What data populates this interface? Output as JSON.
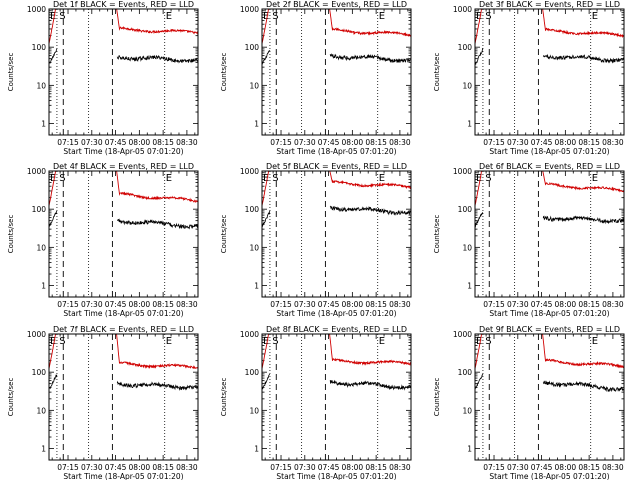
{
  "chart_data": [
    {
      "type": "line",
      "title": "Det 1f BLACK = Events, RED = LLD",
      "xlabel": "Start Time (18-Apr-05 07:01:20)",
      "ylabel": "Counts/sec",
      "red_level": [
        300,
        240
      ],
      "black_level": [
        55,
        45
      ]
    },
    {
      "type": "line",
      "title": "Det 2f BLACK = Events, RED = LLD",
      "xlabel": "Start Time (18-Apr-05 07:01:20)",
      "ylabel": "Counts/sec",
      "red_level": [
        280,
        210
      ],
      "black_level": [
        60,
        45
      ]
    },
    {
      "type": "line",
      "title": "Det 3f BLACK = Events, RED = LLD",
      "xlabel": "Start Time (18-Apr-05 07:01:20)",
      "ylabel": "Counts/sec",
      "red_level": [
        280,
        200
      ],
      "black_level": [
        60,
        45
      ]
    },
    {
      "type": "line",
      "title": "Det 4f BLACK = Events, RED = LLD",
      "xlabel": "Start Time (18-Apr-05 07:01:20)",
      "ylabel": "Counts/sec",
      "red_level": [
        250,
        160
      ],
      "black_level": [
        50,
        35
      ]
    },
    {
      "type": "line",
      "title": "Det 5f BLACK = Events, RED = LLD",
      "xlabel": "Start Time (18-Apr-05 07:01:20)",
      "ylabel": "Counts/sec",
      "red_level": [
        500,
        380
      ],
      "black_level": [
        110,
        80
      ]
    },
    {
      "type": "line",
      "title": "Det 6f BLACK = Events, RED = LLD",
      "xlabel": "Start Time (18-Apr-05 07:01:20)",
      "ylabel": "Counts/sec",
      "red_level": [
        450,
        300
      ],
      "black_level": [
        60,
        50
      ]
    },
    {
      "type": "line",
      "title": "Det 7f BLACK = Events, RED = LLD",
      "xlabel": "Start Time (18-Apr-05 07:01:20)",
      "ylabel": "Counts/sec",
      "red_level": [
        170,
        130
      ],
      "black_level": [
        50,
        40
      ]
    },
    {
      "type": "line",
      "title": "Det 8f BLACK = Events, RED = LLD",
      "xlabel": "Start Time (18-Apr-05 07:01:20)",
      "ylabel": "Counts/sec",
      "red_level": [
        200,
        170
      ],
      "black_level": [
        55,
        40
      ]
    },
    {
      "type": "line",
      "title": "Det 9f BLACK = Events, RED = LLD",
      "xlabel": "Start Time (18-Apr-05 07:01:20)",
      "ylabel": "Counts/sec",
      "red_level": [
        200,
        140
      ],
      "black_level": [
        55,
        35
      ]
    }
  ],
  "shared": {
    "xticks": [
      "07:15",
      "07:30",
      "07:45",
      "08:00",
      "08:15",
      "08:30"
    ],
    "xtick_minutes": [
      15,
      30,
      45,
      60,
      75,
      90
    ],
    "xlim_minutes": [
      3,
      97
    ],
    "yticks": [
      "1",
      "10",
      "100",
      "1000"
    ],
    "ytick_values": [
      1,
      10,
      100,
      1000
    ],
    "ylim": [
      0.5,
      1000
    ],
    "markers": {
      "E": "E",
      "S": "S"
    },
    "gap_minutes": [
      36.5,
      45.5
    ],
    "dashed_lines_minutes": [
      12,
      43
    ],
    "dotted_lines_minutes": [
      8,
      28,
      76
    ],
    "colors": {
      "events": "#000000",
      "lld": "#d00000",
      "axis": "#000000"
    }
  }
}
